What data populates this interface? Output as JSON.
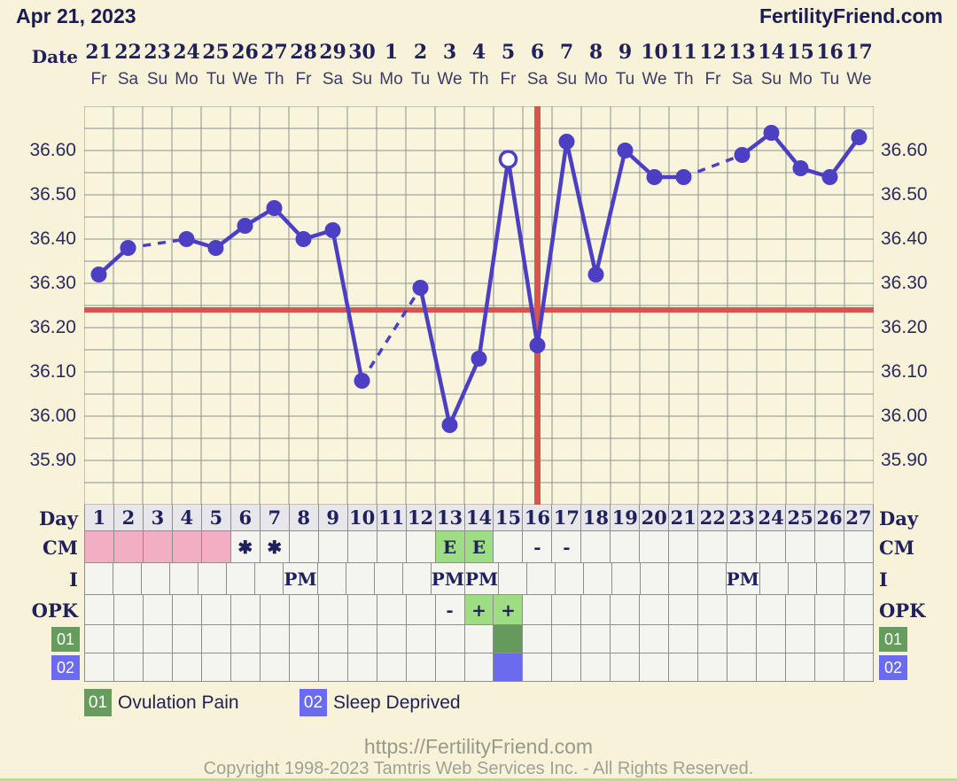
{
  "header": {
    "date_title": "Apr 21, 2023",
    "brand": "FertilityFriend.com"
  },
  "date_header": {
    "label": "Date",
    "dates": [
      "21",
      "22",
      "23",
      "24",
      "25",
      "26",
      "27",
      "28",
      "29",
      "30",
      "1",
      "2",
      "3",
      "4",
      "5",
      "6",
      "7",
      "8",
      "9",
      "10",
      "11",
      "12",
      "13",
      "14",
      "15",
      "16",
      "17"
    ],
    "weekdays": [
      "Fr",
      "Sa",
      "Su",
      "Mo",
      "Tu",
      "We",
      "Th",
      "Fr",
      "Sa",
      "Su",
      "Mo",
      "Tu",
      "We",
      "Th",
      "Fr",
      "Sa",
      "Su",
      "Mo",
      "Tu",
      "We",
      "Th",
      "Fr",
      "Sa",
      "Su",
      "Mo",
      "Tu",
      "We"
    ]
  },
  "chart_data": {
    "type": "line",
    "title": "",
    "xlabel": "",
    "ylabel": "",
    "days": [
      1,
      2,
      3,
      4,
      5,
      6,
      7,
      8,
      9,
      10,
      11,
      12,
      13,
      14,
      15,
      16,
      17,
      18,
      19,
      20,
      21,
      22,
      23,
      24,
      25,
      26,
      27
    ],
    "temps": [
      36.32,
      36.38,
      null,
      36.4,
      36.38,
      36.43,
      36.47,
      36.4,
      36.42,
      36.08,
      null,
      36.29,
      35.98,
      36.13,
      36.58,
      36.16,
      36.62,
      36.32,
      36.6,
      36.54,
      36.54,
      null,
      36.59,
      36.64,
      36.56,
      36.54,
      36.63
    ],
    "open_circle_days": [
      15
    ],
    "missing_days": [
      3,
      11,
      22
    ],
    "coverline_temp": 36.24,
    "ovulation_vertical_line_day": 16,
    "ylim": [
      35.8,
      36.7
    ],
    "y_tick_step": 0.05,
    "y_tick_labels": [
      "36.60",
      "36.50",
      "36.40",
      "36.30",
      "36.20",
      "36.10",
      "36.00",
      "35.90"
    ],
    "grid": true,
    "legend_position": "none"
  },
  "table": {
    "day_label": "Day",
    "day_numbers": [
      "1",
      "2",
      "3",
      "4",
      "5",
      "6",
      "7",
      "8",
      "9",
      "10",
      "11",
      "12",
      "13",
      "14",
      "15",
      "16",
      "17",
      "18",
      "19",
      "20",
      "21",
      "22",
      "23",
      "24",
      "25",
      "26",
      "27"
    ],
    "rows": [
      {
        "id": "cm",
        "label": "CM",
        "cells": [
          {
            "day": 1,
            "bg": "pink"
          },
          {
            "day": 2,
            "bg": "pink"
          },
          {
            "day": 3,
            "bg": "pink"
          },
          {
            "day": 4,
            "bg": "pink"
          },
          {
            "day": 5,
            "bg": "pink"
          },
          {
            "day": 6,
            "text": "✱"
          },
          {
            "day": 7,
            "text": "✱"
          },
          {
            "day": 13,
            "text": "E",
            "bg": "green"
          },
          {
            "day": 14,
            "text": "E",
            "bg": "green"
          },
          {
            "day": 16,
            "text": "-"
          },
          {
            "day": 17,
            "text": "-"
          }
        ]
      },
      {
        "id": "i",
        "label": "I",
        "cells": [
          {
            "day": 8,
            "text": "PM"
          },
          {
            "day": 13,
            "text": "PM"
          },
          {
            "day": 14,
            "text": "PM"
          },
          {
            "day": 23,
            "text": "PM"
          }
        ]
      },
      {
        "id": "opk",
        "label": "OPK",
        "cells": [
          {
            "day": 13,
            "text": "-"
          },
          {
            "day": 14,
            "text": "+",
            "bg": "green"
          },
          {
            "day": 15,
            "text": "+",
            "bg": "green"
          }
        ]
      },
      {
        "id": "01",
        "label": "01",
        "cells": [
          {
            "day": 15,
            "bg": "darkgreen"
          }
        ]
      },
      {
        "id": "02",
        "label": "02",
        "cells": [
          {
            "day": 15,
            "bg": "blue"
          }
        ]
      }
    ]
  },
  "legend": [
    {
      "id": "01",
      "label": "Ovulation Pain",
      "color": "#669c5c"
    },
    {
      "id": "02",
      "label": "Sleep Deprived",
      "color": "#6b6bf0"
    }
  ],
  "footer": {
    "url": "https://FertilityFriend.com",
    "copyright": "Copyright 1998-2023 Tamtris Web Services Inc. - All Rights Reserved."
  },
  "colors": {
    "page_bg": "#f8f3d8",
    "chart_bg": "#f9f5dc",
    "grid": "#8e8e8e",
    "line": "#4c3fc3",
    "red": "#d9534f",
    "pink": "#f2aec3",
    "light_green": "#9edd83",
    "dark_green": "#649a5a",
    "badge_green": "#669c5c",
    "blue": "#6b6bf0",
    "cell_bg": "#f5f5ef",
    "day_header_bg": "#e7e6eb",
    "navy": "#20205c",
    "footer_gray": "#98988d"
  }
}
